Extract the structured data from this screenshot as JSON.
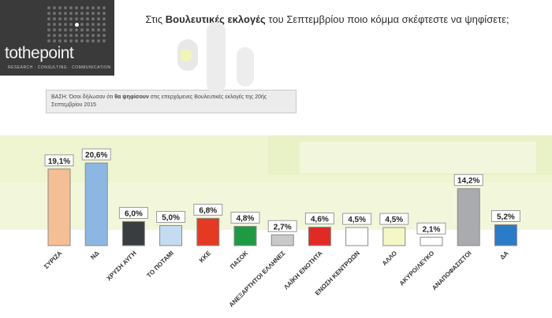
{
  "logo": {
    "name": "tothepoint",
    "tagline": "RESEARCH · CONSULTING · COMMUNICATION"
  },
  "header": {
    "title_pre": "Στις ",
    "title_bold": "Βουλευτικές εκλογές",
    "title_post": " του Σεπτεμβρίου ποιο κόμμα σκέφτεστε να ψηφίσετε;"
  },
  "base": {
    "prefix": "ΒΑΣΗ: Όσοι δήλωσαν ότι ",
    "bold": "θα ψηφίσουν",
    "suffix": " στις επερχόμενες Βουλευτικές εκλογές της 20ής Σεπτεμβρίου 2015"
  },
  "chart_data": {
    "type": "bar",
    "categories": [
      "ΣΥΡΙΖΑ",
      "ΝΔ",
      "ΧΡΥΣΗ ΑΥΓΗ",
      "ΤΟ ΠΟΤΑΜΙ",
      "ΚΚΕ",
      "ΠΑΣΟΚ",
      "ΑΝΕΞΑΡΤΗΤΟΙ ΕΛΛΗΝΕΣ",
      "ΛΑΪΚΗ ΕΝΟΤΗΤΑ",
      "ΕΝΩΣΗ ΚΕΝΤΡΩΩΝ",
      "ΑΛΛΟ",
      "ΑΚΥΡΟ/ΛΕΥΚΟ",
      "ΑΝΑΠΟΦΑΣΙΣΤΟΙ",
      "ΔΑ"
    ],
    "values": [
      19.1,
      20.6,
      6.0,
      5.0,
      6.8,
      4.8,
      2.7,
      4.6,
      4.5,
      4.5,
      2.1,
      14.2,
      5.2
    ],
    "labels": [
      "19,1%",
      "20,6%",
      "6,0%",
      "5,0%",
      "6,8%",
      "4,8%",
      "2,7%",
      "4,6%",
      "4,5%",
      "4,5%",
      "2,1%",
      "14,2%",
      "5,2%"
    ],
    "colors": [
      "#f4bf94",
      "#8cb7e3",
      "#3a3d3f",
      "#c5dbf2",
      "#e43a22",
      "#1e9a45",
      "#c9c9c9",
      "#e02a26",
      "#ffffff",
      "#f4f7c6",
      "#ffffff",
      "#a9abae",
      "#2b7bc6"
    ],
    "ylim": [
      0,
      22
    ],
    "grid": false,
    "legend": "none"
  }
}
